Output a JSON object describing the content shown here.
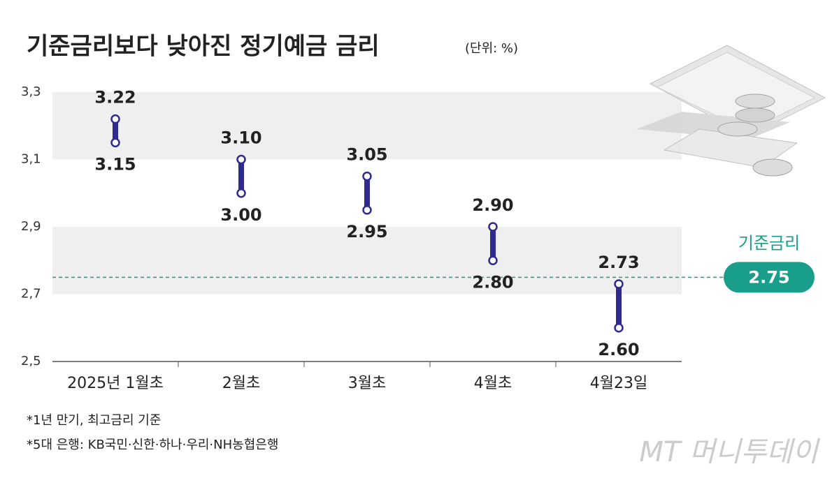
{
  "chart_data": {
    "type": "range",
    "title": "기준금리보다 낮아진 정기예금 금리",
    "unit": "(단위: %)",
    "categories": [
      "2025년 1월초",
      "2월초",
      "3월초",
      "4월초",
      "4월23일"
    ],
    "series": [
      {
        "values": [
          3.22,
          3.1,
          3.05,
          2.9,
          2.73
        ],
        "value_labels": [
          "3.22",
          "3.10",
          "3.05",
          "2.90",
          "2.73"
        ]
      },
      {
        "values": [
          3.15,
          3.0,
          2.95,
          2.8,
          2.6
        ],
        "value_labels": [
          "3.15",
          "3.00",
          "2.95",
          "2.80",
          "2.60"
        ]
      }
    ],
    "color": "#2e2a8f",
    "ylim": [
      2.5,
      3.3
    ],
    "yticks": [
      {
        "value": 3.3,
        "label": "3,3"
      },
      {
        "value": 3.1,
        "label": "3,1"
      },
      {
        "value": 2.9,
        "label": "2,9"
      },
      {
        "value": 2.7,
        "label": "2,7"
      },
      {
        "value": 2.5,
        "label": "2,5"
      }
    ],
    "band_color": "#efefef",
    "reference": {
      "label": "기준금리",
      "value": 2.75,
      "color": "#1a9e8c"
    },
    "notes": [
      "*1년 만기, 최고금리 기준",
      "*5대 은행: KB국민·신한·하나·우리·NH농협은행"
    ],
    "source": "MT 머니투데이"
  }
}
